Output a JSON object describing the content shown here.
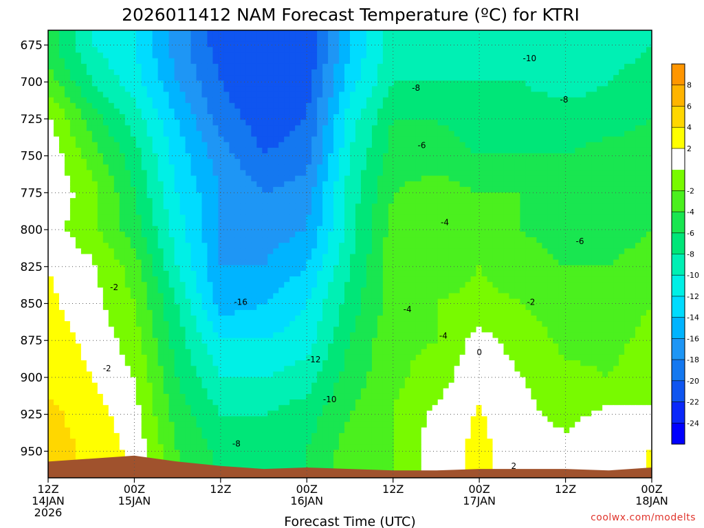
{
  "chart_data": {
    "type": "heatmap",
    "subtype": "time-height contour (filled)",
    "title": "2026011412 NAM Forecast Temperature (ºC) for KTRI",
    "xlabel": "Forecast Time (UTC)",
    "ylabel": "",
    "credit": "coolwx.com/modelts",
    "y_axis": {
      "label": "",
      "inverted": true,
      "range": [
        665,
        968
      ],
      "ticks": [
        675,
        700,
        725,
        750,
        775,
        800,
        825,
        850,
        875,
        900,
        925,
        950
      ]
    },
    "x_axis": {
      "range_hours": [
        0,
        84
      ],
      "ticks": [
        {
          "hour": 0,
          "lines": [
            "12Z",
            "14JAN",
            "2026"
          ]
        },
        {
          "hour": 12,
          "lines": [
            "00Z",
            "15JAN"
          ]
        },
        {
          "hour": 24,
          "lines": [
            "12Z"
          ]
        },
        {
          "hour": 36,
          "lines": [
            "00Z",
            "16JAN"
          ]
        },
        {
          "hour": 48,
          "lines": [
            "12Z"
          ]
        },
        {
          "hour": 60,
          "lines": [
            "00Z",
            "17JAN"
          ]
        },
        {
          "hour": 72,
          "lines": [
            "12Z"
          ]
        },
        {
          "hour": 84,
          "lines": [
            "00Z",
            "18JAN"
          ]
        }
      ]
    },
    "grid": true,
    "colorbar": {
      "position": "right",
      "levels": [
        -26,
        -24,
        -22,
        -20,
        -18,
        -16,
        -14,
        -12,
        -10,
        -8,
        -6,
        -4,
        -2,
        0,
        2,
        4,
        6,
        8,
        10
      ],
      "colors": [
        "#0000ff",
        "#0a28fa",
        "#0f55f0",
        "#1478f0",
        "#1e96f5",
        "#00b4ff",
        "#00dcff",
        "#00f0e6",
        "#00f0b4",
        "#00e678",
        "#19e650",
        "#4bf01e",
        "#78fa00",
        "#ffffff",
        "#ffff00",
        "#ffd700",
        "#ffb400",
        "#ff9600"
      ],
      "tick_labels": [
        "-24",
        "-22",
        "-20",
        "-18",
        "-16",
        "-14",
        "-12",
        "-10",
        "-8",
        "-6",
        "-4",
        "-2",
        "2",
        "4",
        "6",
        "8"
      ]
    },
    "times_hours": [
      0,
      6,
      12,
      18,
      24,
      30,
      36,
      42,
      48,
      54,
      60,
      66,
      72,
      78,
      84
    ],
    "levels_mb": [
      675,
      700,
      725,
      750,
      775,
      800,
      825,
      850,
      875,
      900,
      925,
      950
    ],
    "temperature_c": [
      [
        -5,
        -10,
        -12,
        -17,
        -21,
        -22,
        -22,
        -14,
        -9,
        -9,
        -10,
        -10,
        -10,
        -9,
        -8
      ],
      [
        -3,
        -8,
        -11,
        -16,
        -20,
        -22,
        -21,
        -13,
        -8,
        -8,
        -8,
        -8,
        -9,
        -8,
        -7
      ],
      [
        0.5,
        -5,
        -9,
        -14,
        -19,
        -21,
        -20,
        -11,
        -6,
        -6,
        -7,
        -7,
        -7,
        -7,
        -6
      ],
      [
        1.5,
        -3,
        -7,
        -13,
        -17,
        -20,
        -19,
        -10,
        -5,
        -5,
        -6,
        -6,
        -6,
        -5,
        -5
      ],
      [
        1.5,
        -1,
        -6,
        -12,
        -16,
        -18,
        -17,
        -9,
        -4,
        -3,
        -4,
        -4,
        -5,
        -5,
        -5
      ],
      [
        1,
        -1.5,
        -5,
        -11,
        -16,
        -17,
        -16,
        -9,
        -3,
        -3,
        -3,
        -4,
        -5,
        -5,
        -4
      ],
      [
        2,
        0.5,
        -3,
        -10,
        -16,
        -16,
        -14,
        -8,
        -3,
        -3,
        -2,
        -3,
        -4,
        -4,
        -3
      ],
      [
        2.5,
        0.7,
        -2,
        -8,
        -15,
        -14,
        -12,
        -7,
        -3,
        -2,
        -1.5,
        -2,
        -3,
        -3,
        -2
      ],
      [
        3,
        1.5,
        -1,
        -7,
        -12,
        -12,
        -11,
        -6,
        -2.5,
        -2,
        0.8,
        -1,
        -2.5,
        -2.5,
        -1.5
      ],
      [
        3.5,
        2,
        0,
        -6,
        -10,
        -10,
        -9,
        -5,
        -2.5,
        -1,
        1.5,
        0,
        -1.5,
        -2,
        -1
      ],
      [
        4.5,
        3,
        0.8,
        -5,
        -8,
        -8,
        -7,
        -4,
        -2,
        0.5,
        2.2,
        0.5,
        -0.5,
        0.5,
        0.5
      ],
      [
        5,
        3.5,
        1.5,
        -4,
        -6.5,
        -6.5,
        -6,
        -3,
        -2,
        1.2,
        2.5,
        1,
        0.5,
        1,
        2.2
      ]
    ],
    "contour_labels": [
      {
        "text": "-2",
        "x_hour": 9.2,
        "p": 839
      },
      {
        "text": "-2",
        "x_hour": 8.2,
        "p": 894
      },
      {
        "text": "-16",
        "x_hour": 26.8,
        "p": 849
      },
      {
        "text": "-12",
        "x_hour": 37.0,
        "p": 888
      },
      {
        "text": "-10",
        "x_hour": 39.2,
        "p": 915
      },
      {
        "text": "-8",
        "x_hour": 26.2,
        "p": 945
      },
      {
        "text": "-8",
        "x_hour": 51.2,
        "p": 704
      },
      {
        "text": "-6",
        "x_hour": 52.0,
        "p": 743
      },
      {
        "text": "-10",
        "x_hour": 67.0,
        "p": 684
      },
      {
        "text": "-8",
        "x_hour": 71.8,
        "p": 712
      },
      {
        "text": "-4",
        "x_hour": 55.2,
        "p": 795
      },
      {
        "text": "-6",
        "x_hour": 74.0,
        "p": 808
      },
      {
        "text": "-4",
        "x_hour": 50.0,
        "p": 854
      },
      {
        "text": "-4",
        "x_hour": 55.0,
        "p": 872
      },
      {
        "text": "-2",
        "x_hour": 67.2,
        "p": 849
      },
      {
        "text": "0",
        "x_hour": 60.0,
        "p": 883
      },
      {
        "text": "2",
        "x_hour": 64.8,
        "p": 960
      }
    ],
    "ground_color": "#a0522d",
    "surface_mb": [
      957,
      955,
      953,
      957,
      960,
      962,
      961,
      962,
      963,
      963,
      962,
      962,
      962,
      963,
      961
    ]
  }
}
